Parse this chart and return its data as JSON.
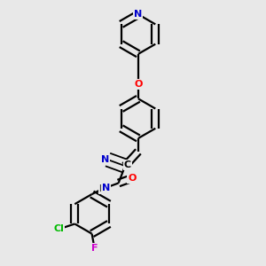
{
  "background_color": "#e8e8e8",
  "bond_color": "#000000",
  "atom_colors": {
    "N": "#0000cc",
    "O": "#ff0000",
    "Cl": "#00bb00",
    "F": "#cc00cc",
    "C": "#000000",
    "H": "#444444"
  },
  "figsize": [
    3.0,
    3.0
  ],
  "dpi": 100
}
